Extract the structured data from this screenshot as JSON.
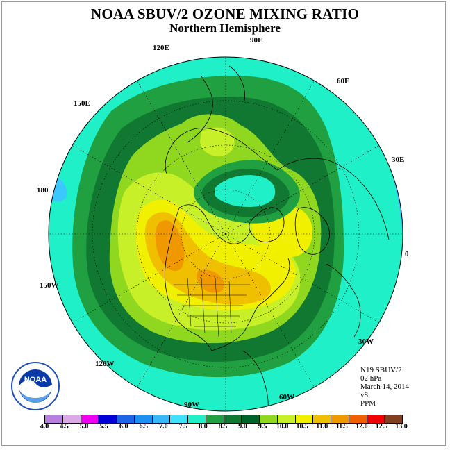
{
  "title": "NOAA SBUV/2 OZONE MIXING RATIO",
  "subtitle": "Northern Hemisphere",
  "longitude_labels": [
    "90E",
    "60E",
    "30E",
    "0",
    "30W",
    "60W",
    "90W",
    "120W",
    "150W",
    "180",
    "150E",
    "120E"
  ],
  "info": {
    "satellite": "N19 SBUV/2",
    "level": "02 hPa",
    "date": "March 14, 2014",
    "version": "v8",
    "units": "PPM"
  },
  "logo_text": "NOAA",
  "legend": {
    "ticks": [
      "4.0",
      "4.5",
      "5.0",
      "5.5",
      "6.0",
      "6.5",
      "7.0",
      "7.5",
      "8.0",
      "8.5",
      "9.0",
      "9.5",
      "10.0",
      "10.5",
      "11.0",
      "11.5",
      "12.0",
      "12.5",
      "13.0"
    ],
    "colors": [
      "#b87fe0",
      "#dca8e8",
      "#f000f0",
      "#0000d8",
      "#1e64e6",
      "#1e90f0",
      "#38b8f8",
      "#40e0ff",
      "#20f0c8",
      "#20a040",
      "#107830",
      "#006428",
      "#90d820",
      "#c8f028",
      "#f0f000",
      "#f0c000",
      "#f09800",
      "#f06000",
      "#f00000",
      "#804020"
    ]
  },
  "colors": {
    "level_7_5": "#3cc8ff",
    "level_8_0": "#20f0c8",
    "level_8_5": "#20a040",
    "level_9_0": "#107830",
    "level_9_5": "#90d820",
    "level_10_0": "#c8f028",
    "level_10_5": "#f0f000",
    "level_11_0": "#f0c000",
    "level_11_5": "#f09800"
  }
}
